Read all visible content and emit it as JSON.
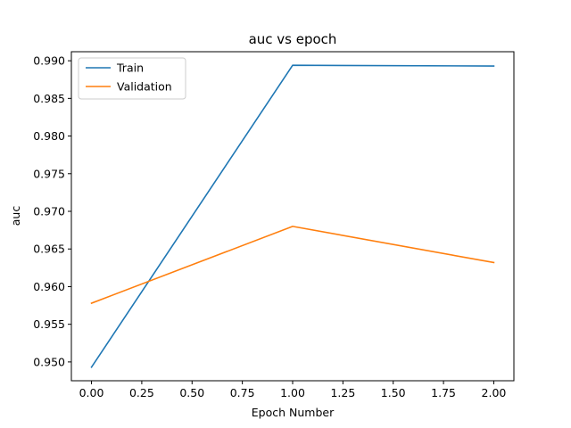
{
  "chart_data": {
    "type": "line",
    "title": "auc vs epoch",
    "xlabel": "Epoch Number",
    "ylabel": "auc",
    "xlim": [
      -0.1,
      2.1
    ],
    "ylim": [
      0.9475,
      0.9912
    ],
    "xticks": [
      0.0,
      0.25,
      0.5,
      0.75,
      1.0,
      1.25,
      1.5,
      1.75,
      2.0
    ],
    "xtick_labels": [
      "0.00",
      "0.25",
      "0.50",
      "0.75",
      "1.00",
      "1.25",
      "1.50",
      "1.75",
      "2.00"
    ],
    "yticks": [
      0.95,
      0.955,
      0.96,
      0.965,
      0.97,
      0.975,
      0.98,
      0.985,
      0.99
    ],
    "ytick_labels": [
      "0.950",
      "0.955",
      "0.960",
      "0.965",
      "0.970",
      "0.975",
      "0.980",
      "0.985",
      "0.990"
    ],
    "x": [
      0,
      1,
      2
    ],
    "series": [
      {
        "name": "Train",
        "color": "#1f77b4",
        "values": [
          0.9493,
          0.9894,
          0.9893
        ]
      },
      {
        "name": "Validation",
        "color": "#ff7f0e",
        "values": [
          0.9578,
          0.968,
          0.9632
        ]
      }
    ],
    "legend": {
      "position": "upper-left"
    },
    "grid": false
  }
}
